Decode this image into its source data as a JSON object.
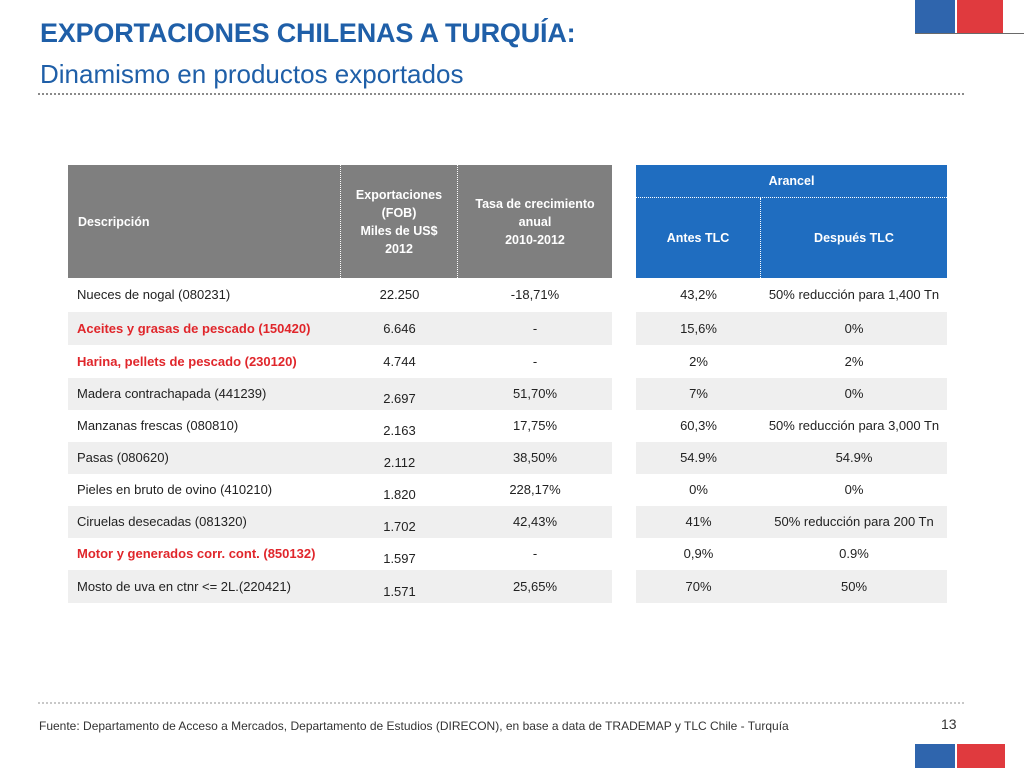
{
  "title": "EXPORTACIONES CHILENAS A TURQUÍA:",
  "subtitle": "Dinamismo en productos exportados",
  "colors": {
    "brand_blue": "#1f5fa8",
    "header_gray": "#7f7f7f",
    "header_blue": "#1f6dc0",
    "highlight_red": "#e0262b",
    "flag_blue": "#2f65ad",
    "flag_red": "#e03a3e"
  },
  "table": {
    "headers": {
      "descripcion": "Descripción",
      "exportaciones": [
        "Exportaciones",
        "(FOB)",
        "Miles  de US$",
        "2012"
      ],
      "tasa": [
        "Tasa de crecimiento",
        "anual",
        "2010-2012"
      ],
      "arancel": "Arancel",
      "antes": "Antes TLC",
      "despues": "Después TLC"
    },
    "rows": [
      {
        "descripcion": "Nueces de nogal  (080231)",
        "exportaciones": "22.250",
        "tasa": "-18,71%",
        "antes": "43,2%",
        "despues": "50% reducción para 1,400 Tn",
        "highlight": false
      },
      {
        "descripcion": "Aceites y grasas de pescado (150420)",
        "exportaciones": "6.646",
        "tasa": "-",
        "antes": "15,6%",
        "despues": "0%",
        "highlight": true
      },
      {
        "descripcion": "Harina, pellets de pescado  (230120)",
        "exportaciones": "4.744",
        "tasa": "-",
        "antes": "2%",
        "despues": "2%",
        "highlight": true
      },
      {
        "descripcion": "Madera contrachapada (441239)",
        "exportaciones": "2.697",
        "tasa": "51,70%",
        "antes": "7%",
        "despues": "0%",
        "highlight": false
      },
      {
        "descripcion": "Manzanas frescas (080810)",
        "exportaciones": "2.163",
        "tasa": "17,75%",
        "antes": "60,3%",
        "despues": "50% reducción para 3,000 Tn",
        "highlight": false
      },
      {
        "descripcion": "Pasas (080620)",
        "exportaciones": "2.112",
        "tasa": "38,50%",
        "antes": "54.9%",
        "despues": "54.9%",
        "highlight": false
      },
      {
        "descripcion": "Pieles en bruto de ovino (410210)",
        "exportaciones": "1.820",
        "tasa": "228,17%",
        "antes": "0%",
        "despues": "0%",
        "highlight": false
      },
      {
        "descripcion": "Ciruelas desecadas (081320)",
        "exportaciones": "1.702",
        "tasa": "42,43%",
        "antes": "41%",
        "despues": "50% reducción para 200 Tn",
        "highlight": false
      },
      {
        "descripcion": "Motor y generados corr. cont. (850132)",
        "exportaciones": "1.597",
        "tasa": "-",
        "antes": "0,9%",
        "despues": "0.9%",
        "highlight": true
      },
      {
        "descripcion": "Mosto de uva en ctnr <= 2L.(220421)",
        "exportaciones": "1.571",
        "tasa": "25,65%",
        "antes": "70%",
        "despues": "50%",
        "highlight": false
      }
    ]
  },
  "source": "Fuente: Departamento de Acceso a Mercados, Departamento de Estudios (DIRECON), en base a data de TRADEMAP y TLC Chile - Turquía",
  "page_number": "13"
}
